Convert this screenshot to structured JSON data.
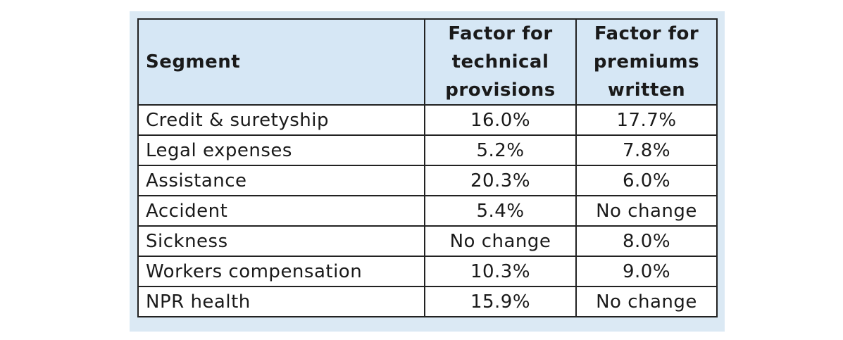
{
  "table": {
    "headers": {
      "segment": "Segment",
      "technical_provisions": "Factor for technical provisions",
      "premiums_written": "Factor for premiums written"
    },
    "rows": [
      {
        "segment": "Credit & suretyship",
        "technical_provisions": "16.0%",
        "premiums_written": "17.7%"
      },
      {
        "segment": "Legal expenses",
        "technical_provisions": "5.2%",
        "premiums_written": "7.8%"
      },
      {
        "segment": "Assistance",
        "technical_provisions": "20.3%",
        "premiums_written": "6.0%"
      },
      {
        "segment": "Accident",
        "technical_provisions": "5.4%",
        "premiums_written": "No change"
      },
      {
        "segment": "Sickness",
        "technical_provisions": "No change",
        "premiums_written": "8.0%"
      },
      {
        "segment": "Workers compensation",
        "technical_provisions": "10.3%",
        "premiums_written": "9.0%"
      },
      {
        "segment": "NPR health",
        "technical_provisions": "15.9%",
        "premiums_written": "No change"
      }
    ]
  },
  "colors": {
    "header_background": "#d6e7f5",
    "panel_background": "#dbe9f4",
    "border": "#222222"
  }
}
